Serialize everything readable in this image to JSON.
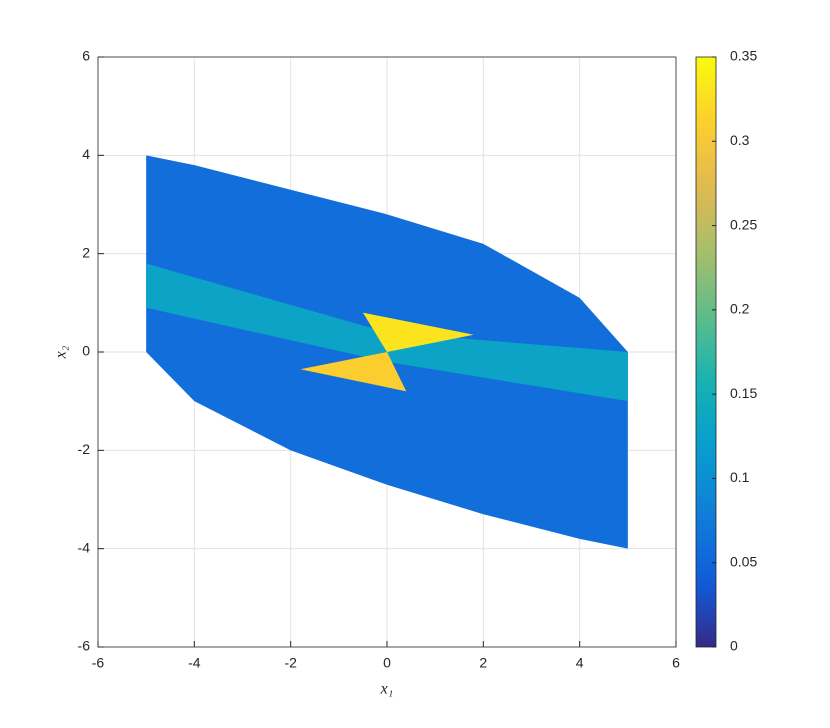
{
  "chart_data": {
    "type": "colormap-region",
    "xlabel": "x₁",
    "ylabel": "x₂",
    "xlim": [
      -6,
      6
    ],
    "ylim": [
      -6,
      6
    ],
    "xticks": [
      -6,
      -4,
      -2,
      0,
      2,
      4,
      6
    ],
    "yticks": [
      -6,
      -4,
      -2,
      0,
      2,
      4,
      6
    ],
    "grid": true,
    "colormap": "parula",
    "clim": [
      0,
      0.35
    ],
    "cticks": [
      0,
      0.05,
      0.1,
      0.15,
      0.2,
      0.25,
      0.3,
      0.35
    ],
    "regions": [
      {
        "x": [
          -5,
          -5,
          -4,
          -2,
          0,
          2,
          4,
          5,
          5,
          4,
          2,
          0,
          -2,
          -4
        ],
        "y": [
          4,
          0,
          -1,
          -2,
          -2.7,
          -3.3,
          -3.8,
          -4,
          0,
          1.1,
          2.2,
          2.8,
          3.3,
          3.8
        ],
        "value": 0.06
      },
      {
        "x": [
          -5,
          0,
          5,
          5,
          0,
          -5
        ],
        "y": [
          1.8,
          0.4,
          0,
          -1,
          -0.2,
          0.9
        ],
        "value": 0.13
      },
      {
        "x": [
          0,
          -0.5,
          1.8
        ],
        "y": [
          0,
          0.8,
          0.35
        ],
        "value": 0.33
      },
      {
        "x": [
          0,
          0.4,
          -1.8
        ],
        "y": [
          0,
          -0.8,
          -0.35
        ],
        "value": 0.31
      }
    ]
  }
}
